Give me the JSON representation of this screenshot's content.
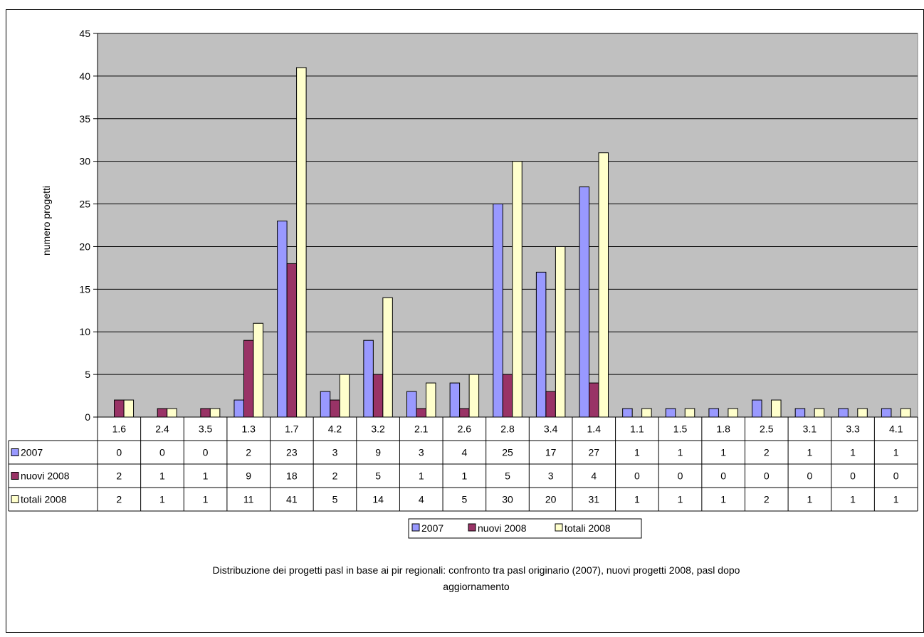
{
  "chart_data": {
    "type": "bar",
    "title": "",
    "xlabel": "",
    "ylabel": "numero progetti",
    "ylim": [
      0,
      45
    ],
    "yticks": [
      0,
      5,
      10,
      15,
      20,
      25,
      30,
      35,
      40,
      45
    ],
    "grid": true,
    "legend_position": "bottom",
    "categories": [
      "1.6",
      "2.4",
      "3.5",
      "1.3",
      "1.7",
      "4.2",
      "3.2",
      "2.1",
      "2.6",
      "2.8",
      "3.4",
      "1.4",
      "1.1",
      "1.5",
      "1.8",
      "2.5",
      "3.1",
      "3.3",
      "4.1"
    ],
    "series": [
      {
        "name": "2007",
        "color": "#9999ff",
        "values": [
          0,
          0,
          0,
          2,
          23,
          3,
          9,
          3,
          4,
          25,
          17,
          27,
          1,
          1,
          1,
          2,
          1,
          1,
          1
        ]
      },
      {
        "name": "nuovi 2008",
        "color": "#993366",
        "values": [
          2,
          1,
          1,
          9,
          18,
          2,
          5,
          1,
          1,
          5,
          3,
          4,
          0,
          0,
          0,
          0,
          0,
          0,
          0
        ]
      },
      {
        "name": "totali 2008",
        "color": "#ffffcc",
        "values": [
          2,
          1,
          1,
          11,
          41,
          5,
          14,
          4,
          5,
          30,
          20,
          31,
          1,
          1,
          1,
          2,
          1,
          1,
          1
        ]
      }
    ],
    "plot_background": "#c0c0c0",
    "data_table": true
  },
  "caption": "Distribuzione dei progetti pasl in base ai pir regionali: confronto tra pasl originario (2007), nuovi progetti 2008, pasl dopo aggiornamento"
}
